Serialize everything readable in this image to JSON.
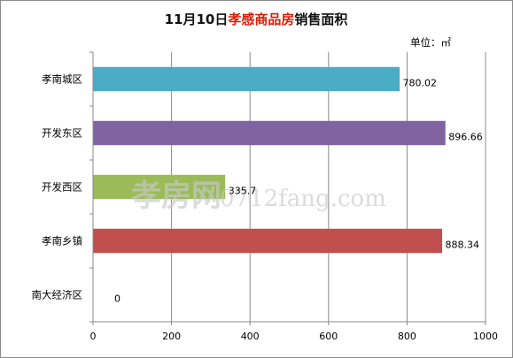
{
  "chart_data": {
    "type": "bar",
    "orientation": "horizontal",
    "title_parts": [
      {
        "text": "11月10日",
        "color": "#111111"
      },
      {
        "text": "孝感商品房",
        "color": "#d81e06"
      },
      {
        "text": "销售面积",
        "color": "#111111"
      }
    ],
    "unit": "单位：㎡",
    "categories": [
      "孝南城区",
      "开发东区",
      "开发西区",
      "孝南乡镇",
      "南大经济区"
    ],
    "values": [
      780.02,
      896.66,
      335.7,
      888.34,
      0
    ],
    "value_labels": [
      "780.02",
      "896.66",
      "335.7",
      "888.34",
      "0"
    ],
    "colors": [
      "#4bacc6",
      "#8064a2",
      "#9bbb59",
      "#c0504d",
      "#4f81bd"
    ],
    "xlim": [
      0,
      1000
    ],
    "xticks": [
      "0",
      "200",
      "400",
      "600",
      "800",
      "1000"
    ],
    "grid": true,
    "legend": "none"
  },
  "watermark": {
    "brand": "孝房网",
    "site": "0712fang.com"
  }
}
